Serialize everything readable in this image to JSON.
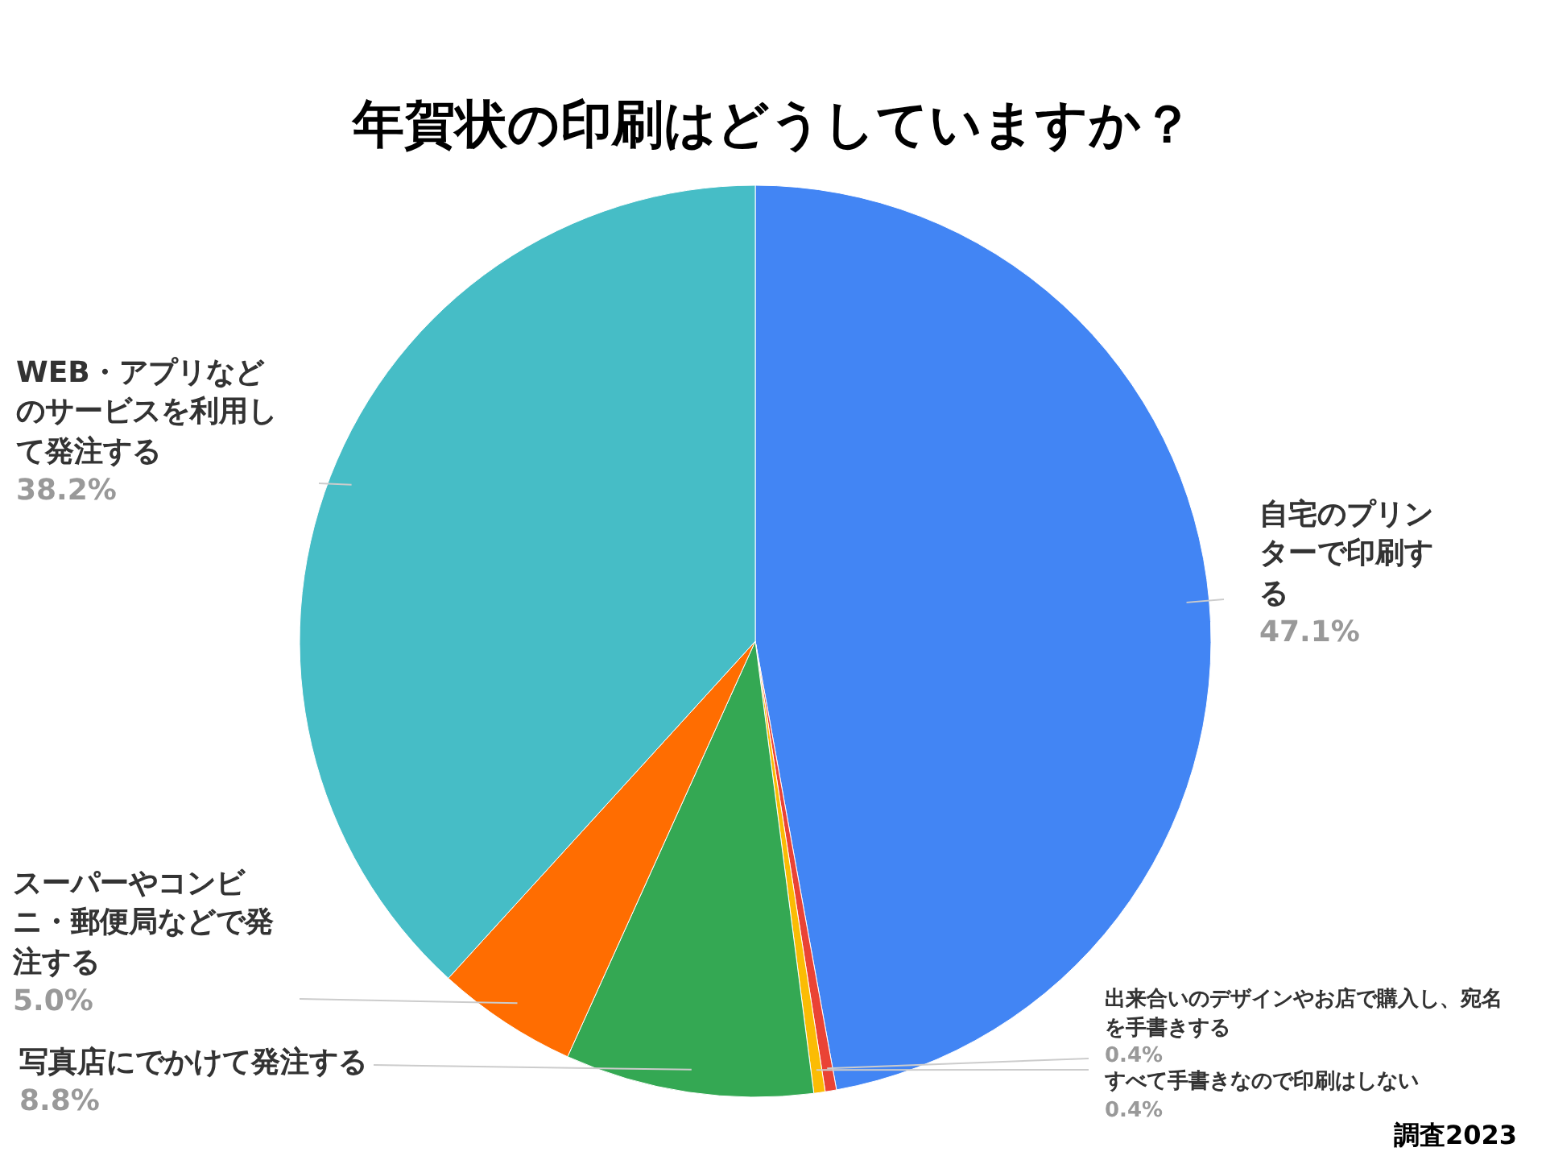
{
  "chart_data": {
    "type": "pie",
    "title": "年賀状の印刷はどうしていますか？",
    "categories": [
      "自宅のプリンターで印刷する",
      "出来合いのデザインやお店で購入し、宛名を手書きする",
      "すべて手書きなので印刷はしない",
      "写真店にでかけて発注する",
      "スーパーやコンビニ・郵便局などで発注する",
      "WEB・アプリなどのサービスを利用して発注する"
    ],
    "values": [
      47.1,
      0.4,
      0.4,
      8.8,
      5.0,
      38.2
    ],
    "value_labels": [
      "47.1%",
      "0.4%",
      "0.4%",
      "8.8%",
      "5.0%",
      "38.2%"
    ],
    "colors": [
      "#4285f4",
      "#ea4335",
      "#fbbc04",
      "#34a853",
      "#ff6d01",
      "#46bdc6"
    ],
    "annotations": [
      "調査2023"
    ]
  }
}
